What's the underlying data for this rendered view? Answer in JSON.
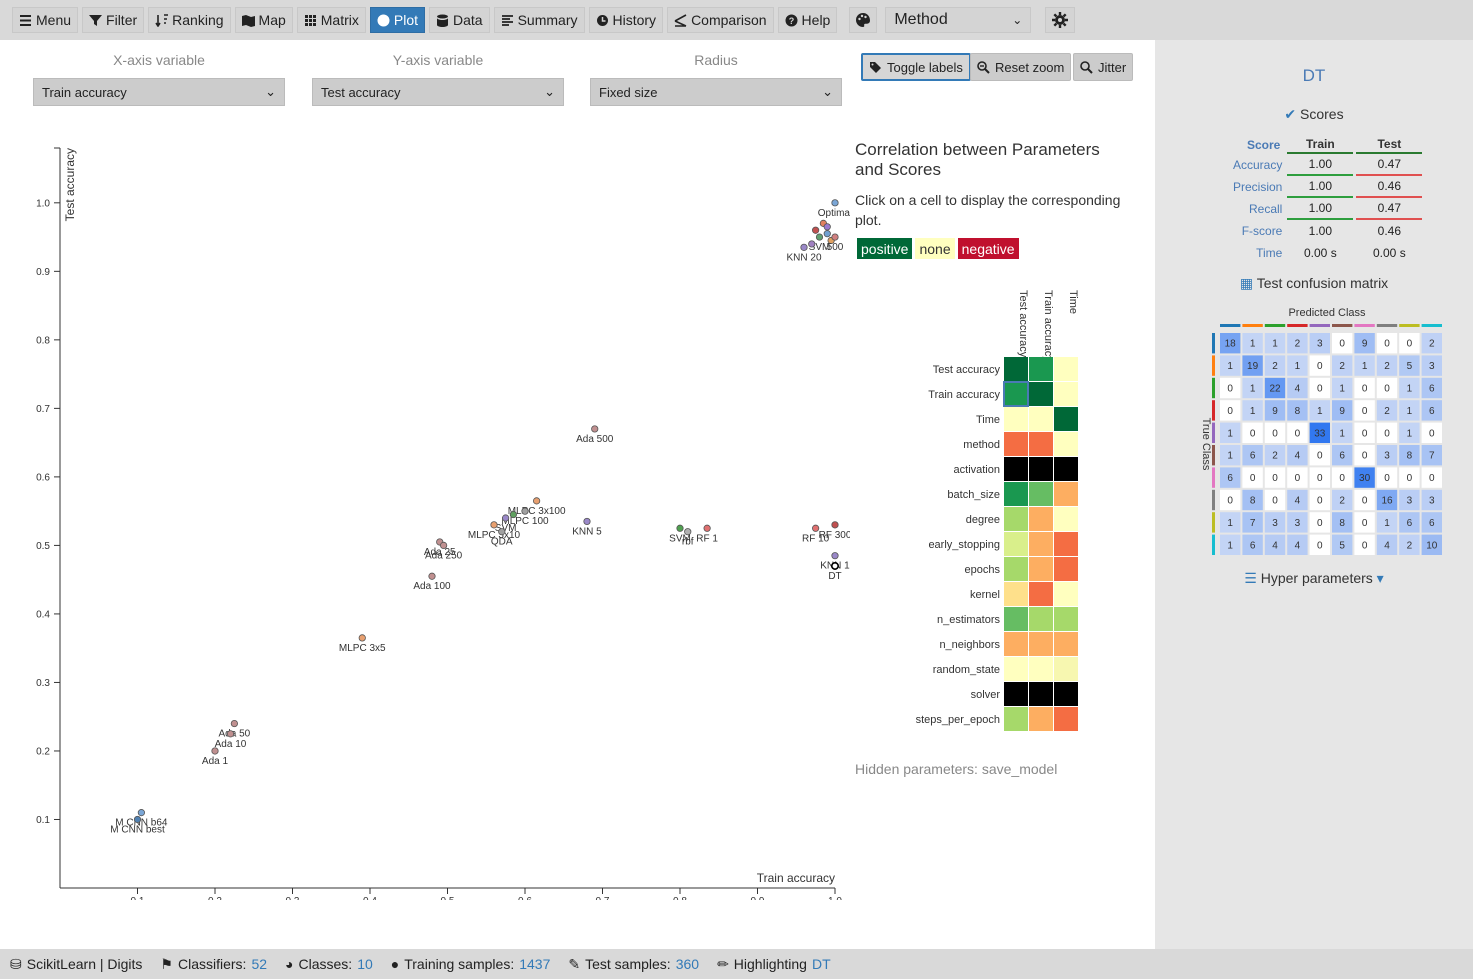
{
  "toolbar": {
    "items": [
      {
        "label": "Menu",
        "icon": "bars-icon"
      },
      {
        "label": "Filter",
        "icon": "filter-icon"
      },
      {
        "label": "Ranking",
        "icon": "sort-icon"
      },
      {
        "label": "Map",
        "icon": "map-icon"
      },
      {
        "label": "Matrix",
        "icon": "grid-icon"
      },
      {
        "label": "Plot",
        "icon": "circle-icon",
        "active": true
      },
      {
        "label": "Data",
        "icon": "database-icon"
      },
      {
        "label": "Summary",
        "icon": "list-icon"
      },
      {
        "label": "History",
        "icon": "clock-icon"
      },
      {
        "label": "Comparison",
        "icon": "compare-icon"
      },
      {
        "label": "Help",
        "icon": "question-icon"
      }
    ],
    "method_select": "Method"
  },
  "axes_controls": {
    "x_label": "X-axis variable",
    "x_value": "Train accuracy",
    "y_label": "Y-axis variable",
    "y_value": "Test accuracy",
    "r_label": "Radius",
    "r_value": "Fixed size"
  },
  "plot_buttons": {
    "toggle_labels": "Toggle labels",
    "reset_zoom": "Reset zoom",
    "jitter": "Jitter"
  },
  "chart_data": {
    "type": "scatter",
    "xlabel": "Train accuracy",
    "ylabel": "Test accuracy",
    "xlim": [
      0.0,
      1.0
    ],
    "ylim": [
      0.0,
      1.08
    ],
    "x_ticks": [
      "0.1",
      "0.2",
      "0.3",
      "0.4",
      "0.5",
      "0.6",
      "0.7",
      "0.8",
      "0.9",
      "1.0"
    ],
    "y_ticks": [
      "0.1",
      "0.2",
      "0.3",
      "0.4",
      "0.5",
      "0.6",
      "0.7",
      "0.8",
      "0.9",
      "1.0"
    ],
    "points": [
      {
        "x": 1.0,
        "y": 1.0,
        "label": "Optimal",
        "color": "#7aa6d6"
      },
      {
        "x": 0.985,
        "y": 0.97,
        "label": "",
        "color": "#e08060"
      },
      {
        "x": 0.99,
        "y": 0.965,
        "label": "",
        "color": "#9a7ad0"
      },
      {
        "x": 0.975,
        "y": 0.96,
        "label": "",
        "color": "#c05050"
      },
      {
        "x": 0.99,
        "y": 0.955,
        "label": "",
        "color": "#70a0d0"
      },
      {
        "x": 0.98,
        "y": 0.95,
        "label": "SVM",
        "color": "#60a070"
      },
      {
        "x": 0.995,
        "y": 0.945,
        "label": "",
        "color": "#e0a060"
      },
      {
        "x": 0.97,
        "y": 0.94,
        "label": "",
        "color": "#a080c0"
      },
      {
        "x": 0.96,
        "y": 0.935,
        "label": "KNN 20",
        "color": "#9a88c8"
      },
      {
        "x": 1.0,
        "y": 0.95,
        "label": "500",
        "color": "#d08080"
      },
      {
        "x": 0.69,
        "y": 0.67,
        "label": "Ada 500",
        "color": "#c09090"
      },
      {
        "x": 0.615,
        "y": 0.565,
        "label": "MLPC 3x100",
        "color": "#e8a070"
      },
      {
        "x": 0.6,
        "y": 0.55,
        "label": "MLPC 100",
        "color": "#a0a0a0"
      },
      {
        "x": 0.585,
        "y": 0.545,
        "label": "",
        "color": "#60a060"
      },
      {
        "x": 0.575,
        "y": 0.54,
        "label": "SVM",
        "color": "#9a88c8"
      },
      {
        "x": 0.56,
        "y": 0.53,
        "label": "MLPC 3x10",
        "color": "#e8a070"
      },
      {
        "x": 0.57,
        "y": 0.52,
        "label": "QDA",
        "color": "#a0a0a0"
      },
      {
        "x": 0.49,
        "y": 0.505,
        "label": "Ada 25",
        "color": "#c09090"
      },
      {
        "x": 0.495,
        "y": 0.5,
        "label": "Ada 250",
        "color": "#c09090"
      },
      {
        "x": 0.48,
        "y": 0.455,
        "label": "Ada 100",
        "color": "#c09090"
      },
      {
        "x": 0.68,
        "y": 0.535,
        "label": "KNN 5",
        "color": "#9a88c8"
      },
      {
        "x": 0.8,
        "y": 0.525,
        "label": "SVM",
        "color": "#50a050"
      },
      {
        "x": 0.81,
        "y": 0.52,
        "label": "rbf",
        "color": "#b0b0b0"
      },
      {
        "x": 0.835,
        "y": 0.525,
        "label": "RF 1",
        "color": "#e07070"
      },
      {
        "x": 0.975,
        "y": 0.525,
        "label": "RF 10",
        "color": "#e07070"
      },
      {
        "x": 1.0,
        "y": 0.53,
        "label": "RF 300",
        "color": "#c05050"
      },
      {
        "x": 1.0,
        "y": 0.485,
        "label": "KNN 1",
        "color": "#9a88c8"
      },
      {
        "x": 1.0,
        "y": 0.47,
        "label": "DT",
        "color": "#ffffff",
        "highlight": true
      },
      {
        "x": 0.39,
        "y": 0.365,
        "label": "MLPC 3x5",
        "color": "#e8a070"
      },
      {
        "x": 0.225,
        "y": 0.24,
        "label": "Ada 50",
        "color": "#c09090"
      },
      {
        "x": 0.22,
        "y": 0.225,
        "label": "Ada 10",
        "color": "#c09090"
      },
      {
        "x": 0.2,
        "y": 0.2,
        "label": "Ada 1",
        "color": "#c09090"
      },
      {
        "x": 0.105,
        "y": 0.11,
        "label": "M CNN b64",
        "color": "#7aa6d6"
      },
      {
        "x": 0.1,
        "y": 0.1,
        "label": "M CNN best",
        "color": "#5080b0"
      }
    ]
  },
  "correlation": {
    "title": "Correlation between Parameters and Scores",
    "description": "Click on a cell to display the corresponding plot.",
    "legend": {
      "positive": "positive",
      "none": "none",
      "negative": "negative"
    },
    "columns": [
      "Test accuracy",
      "Train accuracy",
      "Time"
    ],
    "rows": [
      {
        "name": "Test accuracy",
        "cells": [
          "#006837",
          "#1a9850",
          "#ffffbf"
        ]
      },
      {
        "name": "Train accuracy",
        "cells": [
          "#1a9850",
          "#006837",
          "#ffffbf"
        ]
      },
      {
        "name": "Time",
        "cells": [
          "#ffffbf",
          "#ffffbf",
          "#006837"
        ]
      },
      {
        "name": "method",
        "cells": [
          "#f46d43",
          "#f46d43",
          "#ffffbf"
        ]
      },
      {
        "name": "activation",
        "cells": [
          "#000000",
          "#000000",
          "#000000"
        ]
      },
      {
        "name": "batch_size",
        "cells": [
          "#1a9850",
          "#66bd63",
          "#fdae61"
        ]
      },
      {
        "name": "degree",
        "cells": [
          "#a6d96a",
          "#fdae61",
          "#ffffbf"
        ]
      },
      {
        "name": "early_stopping",
        "cells": [
          "#d9ef8b",
          "#fdae61",
          "#f46d43"
        ]
      },
      {
        "name": "epochs",
        "cells": [
          "#a6d96a",
          "#fdae61",
          "#f46d43"
        ]
      },
      {
        "name": "kernel",
        "cells": [
          "#fee08b",
          "#f46d43",
          "#ffffbf"
        ]
      },
      {
        "name": "n_estimators",
        "cells": [
          "#66bd63",
          "#a6d96a",
          "#a6d96a"
        ]
      },
      {
        "name": "n_neighbors",
        "cells": [
          "#fdae61",
          "#fdae61",
          "#fdae61"
        ]
      },
      {
        "name": "random_state",
        "cells": [
          "#ffffbf",
          "#ffffbf",
          "#f7f7b0"
        ]
      },
      {
        "name": "solver",
        "cells": [
          "#000000",
          "#000000",
          "#000000"
        ]
      },
      {
        "name": "steps_per_epoch",
        "cells": [
          "#a6d96a",
          "#fdae61",
          "#f46d43"
        ]
      }
    ],
    "hidden": "Hidden parameters: save_model"
  },
  "detail": {
    "name": "DT",
    "scores_title": "Scores",
    "headers": {
      "score": "Score",
      "train": "Train",
      "test": "Test"
    },
    "rows": [
      {
        "name": "Accuracy",
        "train": "1.00",
        "test": "0.47"
      },
      {
        "name": "Precision",
        "train": "1.00",
        "test": "0.46"
      },
      {
        "name": "Recall",
        "train": "1.00",
        "test": "0.47"
      },
      {
        "name": "F-score",
        "train": "1.00",
        "test": "0.46"
      },
      {
        "name": "Time",
        "train": "0.00 s",
        "test": "0.00 s"
      }
    ],
    "cm_title": "Test confusion matrix",
    "cm_xlabel": "Predicted Class",
    "cm_ylabel": "True Class",
    "class_colors": [
      "#1f77b4",
      "#ff7f0e",
      "#2ca02c",
      "#d62728",
      "#9467bd",
      "#8c564b",
      "#e377c2",
      "#7f7f7f",
      "#bcbd22",
      "#17becf"
    ],
    "matrix": [
      [
        18,
        1,
        1,
        2,
        3,
        0,
        9,
        0,
        0,
        2
      ],
      [
        1,
        19,
        2,
        1,
        0,
        2,
        1,
        2,
        5,
        3
      ],
      [
        0,
        1,
        22,
        4,
        0,
        1,
        0,
        0,
        1,
        6
      ],
      [
        0,
        1,
        9,
        8,
        1,
        9,
        0,
        2,
        1,
        6
      ],
      [
        1,
        0,
        0,
        0,
        33,
        1,
        0,
        0,
        1,
        0
      ],
      [
        1,
        6,
        2,
        4,
        0,
        6,
        0,
        3,
        8,
        7
      ],
      [
        6,
        0,
        0,
        0,
        0,
        0,
        30,
        0,
        0,
        0
      ],
      [
        0,
        8,
        0,
        4,
        0,
        2,
        0,
        16,
        3,
        3
      ],
      [
        1,
        7,
        3,
        3,
        0,
        8,
        0,
        1,
        6,
        6
      ],
      [
        1,
        6,
        4,
        4,
        0,
        5,
        0,
        4,
        2,
        10
      ]
    ],
    "hyper": "Hyper parameters"
  },
  "status": {
    "dataset": "ScikitLearn | Digits",
    "classifiers_label": "Classifiers:",
    "classifiers": "52",
    "classes_label": "Classes:",
    "classes": "10",
    "train_label": "Training samples:",
    "train": "1437",
    "test_label": "Test samples:",
    "test": "360",
    "highlight_label": "Highlighting",
    "highlight": "DT"
  }
}
